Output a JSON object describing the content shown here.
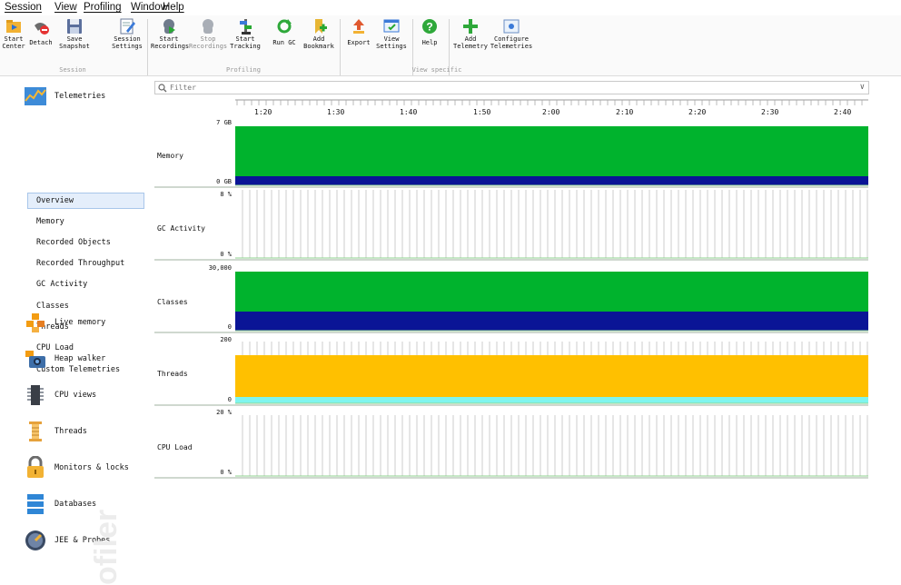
{
  "menu": [
    "Session",
    "View",
    "Profiling",
    "Window",
    "Help"
  ],
  "toolbar": {
    "buttons": [
      {
        "l1": "Start",
        "l2": "Center",
        "icon": "start-center-icon"
      },
      {
        "l1": "Detach",
        "l2": "",
        "icon": "detach-icon"
      },
      {
        "l1": "Save",
        "l2": "Snapshot",
        "icon": "save-snapshot-icon"
      },
      {
        "l1": "Session",
        "l2": "Settings",
        "icon": "session-settings-icon"
      },
      {
        "l1": "Start",
        "l2": "Recordings",
        "icon": "start-recordings-icon"
      },
      {
        "l1": "Stop",
        "l2": "Recordings",
        "icon": "stop-recordings-icon"
      },
      {
        "l1": "Start",
        "l2": "Tracking",
        "icon": "start-tracking-icon"
      },
      {
        "l1": "Run GC",
        "l2": "",
        "icon": "run-gc-icon"
      },
      {
        "l1": "Add",
        "l2": "Bookmark",
        "icon": "add-bookmark-icon"
      },
      {
        "l1": "Export",
        "l2": "",
        "icon": "export-icon"
      },
      {
        "l1": "View",
        "l2": "Settings",
        "icon": "view-settings-icon"
      },
      {
        "l1": "Help",
        "l2": "",
        "icon": "help-icon"
      },
      {
        "l1": "Add",
        "l2": "Telemetry",
        "icon": "add-telemetry-icon"
      },
      {
        "l1": "Configure",
        "l2": "Telemetries",
        "icon": "configure-telemetries-icon"
      }
    ],
    "groups": [
      "Session",
      "Profiling",
      "View specific"
    ]
  },
  "sidebar": {
    "telemetries": "Telemetries",
    "items": [
      "Overview",
      "Memory",
      "Recorded Objects",
      "Recorded Throughput",
      "GC Activity",
      "Classes",
      "Threads",
      "CPU Load",
      "Custom Telemetries"
    ],
    "sections": [
      "Live memory",
      "Heap walker",
      "CPU views",
      "Threads",
      "Monitors & locks",
      "Databases",
      "JEE & Probes"
    ],
    "watermark": "ofiler"
  },
  "filter": {
    "placeholder": "Filter"
  },
  "time_ticks": [
    "1:20",
    "1:30",
    "1:40",
    "1:50",
    "2:00",
    "2:10",
    "2:20",
    "2:30",
    "2:40"
  ],
  "rows": [
    {
      "label": "Memory",
      "ymax": "7 GB",
      "ymin": "0 GB"
    },
    {
      "label": "GC Activity",
      "ymax": "8 %",
      "ymin": "0 %"
    },
    {
      "label": "Classes",
      "ymax": "30,000",
      "ymin": "0"
    },
    {
      "label": "Threads",
      "ymax": "200",
      "ymin": "0"
    },
    {
      "label": "CPU Load",
      "ymax": "20 %",
      "ymin": "0 %"
    }
  ],
  "colors": {
    "green": "#00b32d",
    "navy": "#0a1596",
    "amber": "#ffc000",
    "cyan": "#7ff5ee",
    "grid": "#b8b8b8",
    "accent": "#a8c6ea"
  }
}
